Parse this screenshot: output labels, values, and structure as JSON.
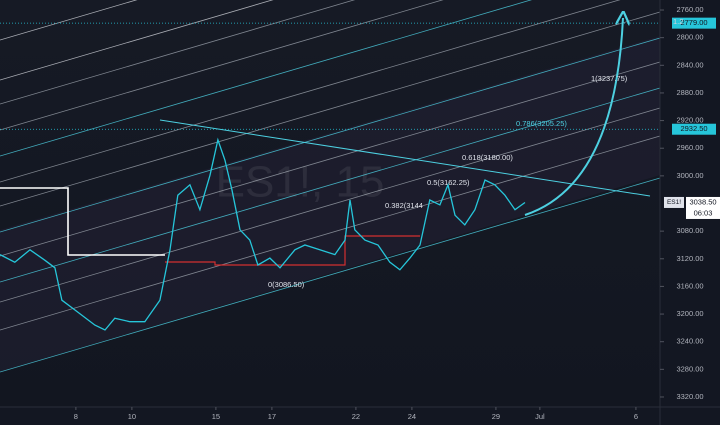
{
  "chart_data": {
    "type": "line",
    "watermark": "ES1!, 15",
    "x": [
      -2.71,
      -2.18,
      -1.64,
      -1.11,
      -0.75,
      -0.5,
      -0.04,
      0.68,
      1.04,
      1.39,
      1.93,
      2.46,
      3.0,
      3.36,
      3.64,
      4.07,
      4.43,
      4.79,
      5.07,
      5.32,
      5.57,
      5.86,
      6.21,
      6.5,
      6.93,
      7.29,
      7.82,
      8.18,
      8.71,
      9.25,
      9.61,
      9.79,
      9.96,
      10.32,
      10.79,
      11.21,
      11.57,
      11.93,
      12.29,
      12.64,
      13.0,
      13.29,
      13.54,
      13.89,
      14.25,
      14.61,
      14.96,
      15.32,
      15.68,
      16.04
    ],
    "series": [
      {
        "color": "#26c6da",
        "values": [
          3114,
          3125,
          3107,
          3122,
          3133,
          3180,
          3194,
          3216,
          3223,
          3206,
          3211,
          3211,
          3180,
          3107,
          3028,
          3013,
          3049,
          2999,
          2948,
          2977,
          3020,
          3078,
          3093,
          3129,
          3119,
          3133,
          3107,
          3100,
          3107,
          3114,
          3093,
          3035,
          3078,
          3093,
          3100,
          3125,
          3136,
          3119,
          3100,
          3035,
          3042,
          3013,
          3057,
          3071,
          3049,
          3006,
          3013,
          3028,
          3049,
          3038.5
        ]
      }
    ],
    "xlim": [
      -2.71,
      20.86
    ],
    "xticks": [
      {
        "value": 0,
        "label": "8"
      },
      {
        "value": 2,
        "label": "10"
      },
      {
        "value": 5,
        "label": "15"
      },
      {
        "value": 7,
        "label": "17"
      },
      {
        "value": 10,
        "label": "22"
      },
      {
        "value": 12,
        "label": "24"
      },
      {
        "value": 15,
        "label": "29"
      },
      {
        "value": 16.57,
        "label": "Jul"
      },
      {
        "value": 20,
        "label": "6"
      }
    ],
    "ylim": [
      3334.5,
      2745.5
    ],
    "yticks": [
      {
        "value": 2760,
        "label": "2760.00"
      },
      {
        "value": 2800,
        "label": "2800.00"
      },
      {
        "value": 2840,
        "label": "2840.00"
      },
      {
        "value": 2880,
        "label": "2880.00"
      },
      {
        "value": 2920,
        "label": "2920.00"
      },
      {
        "value": 2960,
        "label": "2960.00"
      },
      {
        "value": 3000,
        "label": "3000.00"
      },
      {
        "value": 3080,
        "label": "3080.00"
      },
      {
        "value": 3120,
        "label": "3120.00"
      },
      {
        "value": 3160,
        "label": "3160.00"
      },
      {
        "value": 3200,
        "label": "3200.00"
      },
      {
        "value": 3240,
        "label": "3240.00"
      },
      {
        "value": 3280,
        "label": "3280.00"
      },
      {
        "value": 3320,
        "label": "3320.00"
      }
    ],
    "price_lines": [
      {
        "value": 2779,
        "label": "2779.00",
        "color": "#26c6da"
      },
      {
        "value": 2932.5,
        "label": "2932.50",
        "color": "#26c6da"
      }
    ],
    "last_price": {
      "symbol": "ES1!",
      "value": 3038.5,
      "label": "3038.50",
      "countdown": "06:03"
    },
    "annotations": [
      "1.2",
      "1(3237.75)",
      "0.786(3205.25)",
      "0.618(3180.00)",
      "0.5(3162.25)",
      "0.382(3144",
      "0(3086.50)"
    ]
  }
}
